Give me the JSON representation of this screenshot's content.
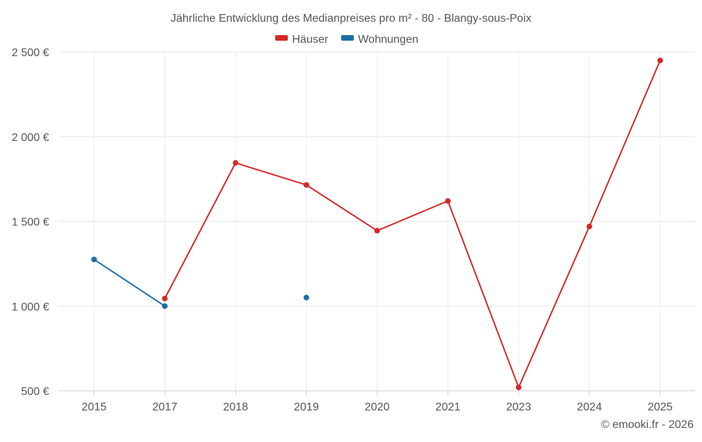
{
  "chart_data": {
    "type": "line",
    "title": "Jährliche Entwicklung des Medianpreises pro m² - 80 - Blangy-sous-Poix",
    "categories": [
      "2015",
      "2017",
      "2018",
      "2019",
      "2020",
      "2021",
      "2023",
      "2024",
      "2025"
    ],
    "y_ticks": [
      "500 €",
      "1 000 €",
      "1 500 €",
      "2 000 €",
      "2 500 €"
    ],
    "ylim": [
      500,
      2500
    ],
    "grid": true,
    "legend_position": "top-center",
    "series": [
      {
        "name": "Häuser",
        "color": "#d62728",
        "values": [
          null,
          1045,
          1845,
          1715,
          1445,
          1620,
          520,
          1470,
          2450
        ],
        "connect_gaps": false
      },
      {
        "name": "Wohnungen",
        "color": "#1f6fa5",
        "values": [
          1275,
          1000,
          null,
          1050,
          null,
          null,
          null,
          null,
          null
        ],
        "connect_gaps": false
      }
    ],
    "credit": "© emooki.fr - 2026"
  }
}
